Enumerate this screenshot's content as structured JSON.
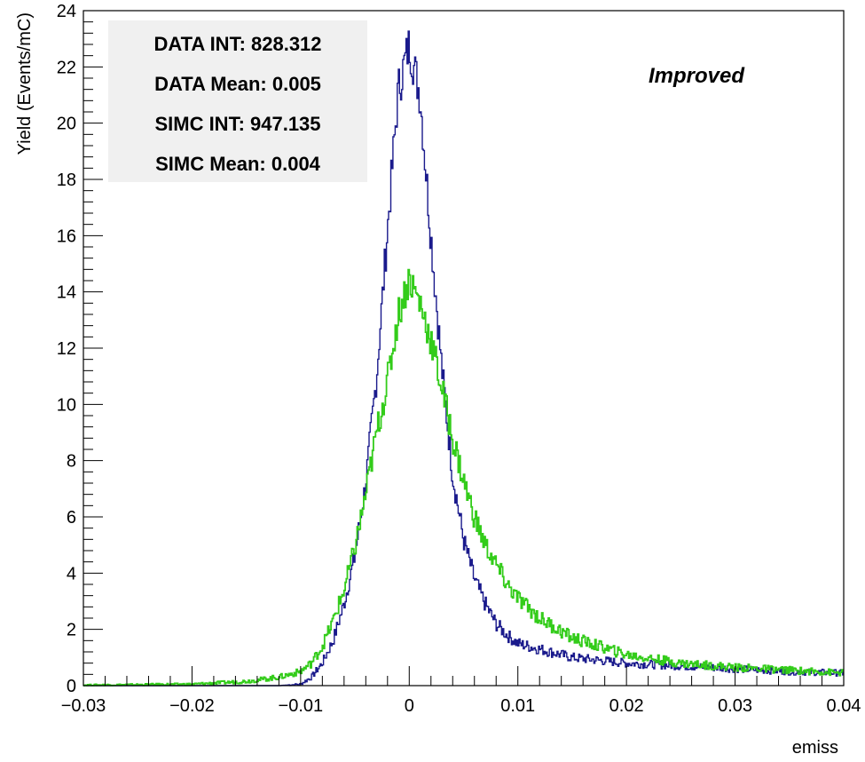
{
  "chart_data": {
    "type": "line",
    "title": "",
    "xlabel": "emiss",
    "ylabel": "Yield (Events/mC)",
    "xlim": [
      -0.03,
      0.04
    ],
    "ylim": [
      0,
      24
    ],
    "x_ticks": [
      -0.03,
      -0.02,
      -0.01,
      0,
      0.01,
      0.02,
      0.03,
      0.04
    ],
    "x_tick_labels": [
      "−0.03",
      "−0.02",
      "−0.01",
      "0",
      "0.01",
      "0.02",
      "0.03",
      "0.04"
    ],
    "y_ticks": [
      0,
      2,
      4,
      6,
      8,
      10,
      12,
      14,
      16,
      18,
      20,
      22,
      24
    ],
    "y_tick_labels": [
      "0",
      "2",
      "4",
      "6",
      "8",
      "10",
      "12",
      "14",
      "16",
      "18",
      "20",
      "22",
      "24"
    ],
    "grid": false,
    "stats_box": {
      "lines": [
        "DATA INT: 828.312",
        "DATA Mean: 0.005",
        "SIMC INT: 947.135",
        "SIMC Mean: 0.004"
      ]
    },
    "annotation": "Improved",
    "series": [
      {
        "color": "#1a1a8c",
        "x": [
          -0.03,
          -0.012,
          -0.01,
          -0.009,
          -0.008,
          -0.007,
          -0.006,
          -0.005,
          -0.004,
          -0.003,
          -0.002,
          -0.001,
          0,
          0.001,
          0.002,
          0.003,
          0.004,
          0.005,
          0.006,
          0.007,
          0.008,
          0.009,
          0.01,
          0.012,
          0.015,
          0.02,
          0.025,
          0.03,
          0.035,
          0.04
        ],
        "y": [
          0,
          0,
          0.05,
          0.3,
          0.8,
          1.6,
          2.9,
          4.6,
          7.2,
          11.0,
          16.2,
          21.2,
          22.8,
          21.0,
          16.0,
          11.3,
          7.5,
          5.2,
          3.8,
          2.9,
          2.2,
          1.8,
          1.5,
          1.3,
          1.0,
          0.8,
          0.7,
          0.6,
          0.5,
          0.45
        ]
      },
      {
        "color": "#33cc1a",
        "x": [
          -0.03,
          -0.02,
          -0.015,
          -0.012,
          -0.01,
          -0.009,
          -0.008,
          -0.007,
          -0.006,
          -0.005,
          -0.004,
          -0.003,
          -0.002,
          -0.001,
          0,
          0.001,
          0.002,
          0.003,
          0.004,
          0.005,
          0.006,
          0.007,
          0.008,
          0.009,
          0.01,
          0.012,
          0.015,
          0.02,
          0.025,
          0.03,
          0.035,
          0.04
        ],
        "y": [
          0.02,
          0.05,
          0.15,
          0.3,
          0.5,
          0.8,
          1.4,
          2.3,
          3.4,
          4.9,
          6.8,
          9.0,
          10.8,
          13.2,
          14.5,
          13.6,
          12.3,
          10.6,
          8.8,
          7.3,
          6.0,
          5.0,
          4.3,
          3.6,
          3.1,
          2.4,
          1.7,
          1.1,
          0.8,
          0.65,
          0.55,
          0.45
        ]
      }
    ]
  }
}
